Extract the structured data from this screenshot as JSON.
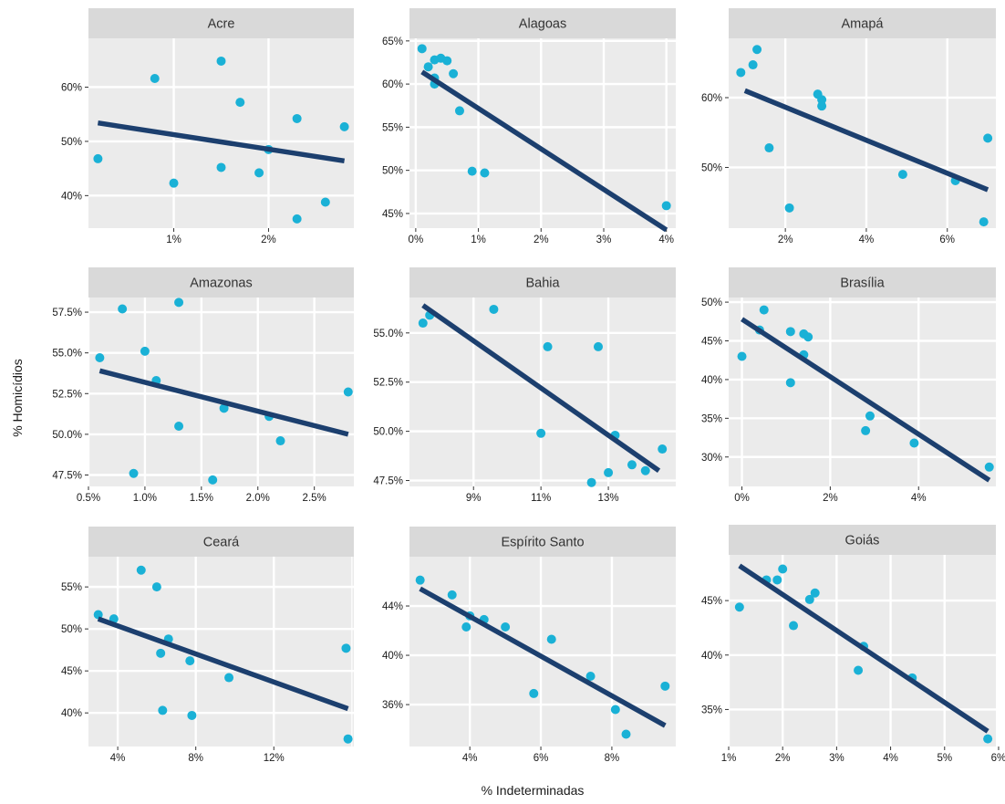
{
  "figure": {
    "xlabel": "% Indeterminadas",
    "ylabel": "% Homicídios"
  },
  "colors": {
    "panel_bg": "#EBEBEB",
    "strip_bg": "#D9D9D9",
    "grid": "#FFFFFF",
    "point": "#1AB1D6",
    "line": "#1C3F6E",
    "text": "#333333",
    "tick_text": "#1A1A1A"
  },
  "chart_data": [
    {
      "type": "scatter",
      "title": "Acre",
      "xlim": [
        0.1,
        2.9
      ],
      "ylim": [
        34,
        69
      ],
      "xticks": [
        1,
        2
      ],
      "xtick_labels": [
        "1%",
        "2%"
      ],
      "yticks": [
        40,
        50,
        60
      ],
      "ytick_labels": [
        "40%",
        "50%",
        "60%"
      ],
      "points": [
        [
          0.2,
          46.8
        ],
        [
          0.8,
          61.6
        ],
        [
          1.0,
          42.3
        ],
        [
          1.5,
          64.8
        ],
        [
          1.5,
          45.2
        ],
        [
          1.7,
          57.2
        ],
        [
          1.9,
          44.2
        ],
        [
          2.0,
          48.5
        ],
        [
          2.3,
          54.2
        ],
        [
          2.3,
          35.7
        ],
        [
          2.6,
          38.8
        ],
        [
          2.8,
          52.7
        ]
      ],
      "fit": [
        [
          0.2,
          53.4
        ],
        [
          2.8,
          46.4
        ]
      ]
    },
    {
      "type": "scatter",
      "title": "Alagoas",
      "xlim": [
        -0.1,
        4.15
      ],
      "ylim": [
        43.3,
        65.3
      ],
      "xticks": [
        0,
        1,
        2,
        3,
        4
      ],
      "xtick_labels": [
        "0%",
        "1%",
        "2%",
        "3%",
        "4%"
      ],
      "yticks": [
        45,
        50,
        55,
        60,
        65
      ],
      "ytick_labels": [
        "45%",
        "50%",
        "55%",
        "60%",
        "65%"
      ],
      "points": [
        [
          0.1,
          64.1
        ],
        [
          0.2,
          62.0
        ],
        [
          0.3,
          62.8
        ],
        [
          0.4,
          63.0
        ],
        [
          0.5,
          62.7
        ],
        [
          0.3,
          60.7
        ],
        [
          0.3,
          60.0
        ],
        [
          0.6,
          61.2
        ],
        [
          0.7,
          56.9
        ],
        [
          0.9,
          49.9
        ],
        [
          1.1,
          49.7
        ],
        [
          4.0,
          45.9
        ]
      ],
      "fit": [
        [
          0.1,
          61.4
        ],
        [
          4.0,
          43.1
        ]
      ]
    },
    {
      "type": "scatter",
      "title": "Amapá",
      "xlim": [
        0.6,
        7.2
      ],
      "ylim": [
        41.3,
        68.5
      ],
      "xticks": [
        2,
        4,
        6
      ],
      "xtick_labels": [
        "2%",
        "4%",
        "6%"
      ],
      "yticks": [
        50,
        60
      ],
      "ytick_labels": [
        "50%",
        "60%"
      ],
      "points": [
        [
          0.9,
          63.6
        ],
        [
          1.2,
          64.7
        ],
        [
          1.3,
          66.9
        ],
        [
          1.6,
          52.8
        ],
        [
          2.1,
          44.2
        ],
        [
          2.8,
          60.5
        ],
        [
          2.9,
          59.7
        ],
        [
          2.9,
          58.8
        ],
        [
          4.9,
          49.0
        ],
        [
          6.2,
          48.1
        ],
        [
          6.9,
          42.2
        ],
        [
          7.0,
          54.2
        ]
      ],
      "fit": [
        [
          1.0,
          61.0
        ],
        [
          7.0,
          46.8
        ]
      ]
    },
    {
      "type": "scatter",
      "title": "Amazonas",
      "xlim": [
        0.5,
        2.85
      ],
      "ylim": [
        46.8,
        58.4
      ],
      "xticks": [
        0.5,
        1.0,
        1.5,
        2.0,
        2.5
      ],
      "xtick_labels": [
        "0.5%",
        "1.0%",
        "1.5%",
        "2.0%",
        "2.5%"
      ],
      "yticks": [
        47.5,
        50.0,
        52.5,
        55.0,
        57.5
      ],
      "ytick_labels": [
        "47.5%",
        "50.0%",
        "52.5%",
        "55.0%",
        "57.5%"
      ],
      "points": [
        [
          0.6,
          54.7
        ],
        [
          0.8,
          57.7
        ],
        [
          0.9,
          47.6
        ],
        [
          1.0,
          55.1
        ],
        [
          1.1,
          53.3
        ],
        [
          1.3,
          58.1
        ],
        [
          1.3,
          50.5
        ],
        [
          1.6,
          47.2
        ],
        [
          1.7,
          51.6
        ],
        [
          2.1,
          51.1
        ],
        [
          2.2,
          49.6
        ],
        [
          2.8,
          52.6
        ]
      ],
      "fit": [
        [
          0.6,
          53.9
        ],
        [
          2.8,
          50.0
        ]
      ]
    },
    {
      "type": "scatter",
      "title": "Bahia",
      "xlim": [
        7.1,
        15.0
      ],
      "ylim": [
        47.2,
        56.8
      ],
      "xticks": [
        9,
        11,
        13
      ],
      "xtick_labels": [
        "9%",
        "11%",
        "13%"
      ],
      "yticks": [
        47.5,
        50.0,
        52.5,
        55.0
      ],
      "ytick_labels": [
        "47.5%",
        "50.0%",
        "52.5%",
        "55.0%"
      ],
      "points": [
        [
          7.5,
          55.5
        ],
        [
          7.7,
          55.9
        ],
        [
          9.6,
          56.2
        ],
        [
          11.0,
          49.9
        ],
        [
          11.2,
          54.3
        ],
        [
          12.5,
          47.4
        ],
        [
          12.7,
          54.3
        ],
        [
          13.0,
          47.9
        ],
        [
          13.2,
          49.8
        ],
        [
          13.7,
          48.3
        ],
        [
          14.1,
          48.0
        ],
        [
          14.6,
          49.1
        ]
      ],
      "fit": [
        [
          7.5,
          56.4
        ],
        [
          14.5,
          48.0
        ]
      ]
    },
    {
      "type": "scatter",
      "title": "Brasília",
      "xlim": [
        -0.3,
        5.75
      ],
      "ylim": [
        26.2,
        50.6
      ],
      "xticks": [
        0,
        2,
        4
      ],
      "xtick_labels": [
        "0%",
        "2%",
        "4%"
      ],
      "yticks": [
        30,
        35,
        40,
        45,
        50
      ],
      "ytick_labels": [
        "30%",
        "35%",
        "40%",
        "45%",
        "50%"
      ],
      "points": [
        [
          0.0,
          43.0
        ],
        [
          0.4,
          46.4
        ],
        [
          0.5,
          49.0
        ],
        [
          1.1,
          46.2
        ],
        [
          1.4,
          45.9
        ],
        [
          1.5,
          45.5
        ],
        [
          1.4,
          43.2
        ],
        [
          1.1,
          39.6
        ],
        [
          2.9,
          35.3
        ],
        [
          2.8,
          33.4
        ],
        [
          3.9,
          31.8
        ],
        [
          5.6,
          28.7
        ]
      ],
      "fit": [
        [
          0.0,
          47.8
        ],
        [
          5.6,
          27.0
        ]
      ]
    },
    {
      "type": "scatter",
      "title": "Ceará",
      "xlim": [
        2.5,
        16.1
      ],
      "ylim": [
        36.0,
        58.6
      ],
      "xticks": [
        4,
        8,
        12
      ],
      "xtick_labels": [
        "4%",
        "8%",
        "12%"
      ],
      "yticks": [
        40,
        45,
        50,
        55
      ],
      "ytick_labels": [
        "40%",
        "45%",
        "50%",
        "55%"
      ],
      "points": [
        [
          3.0,
          51.7
        ],
        [
          3.8,
          51.2
        ],
        [
          5.2,
          57.0
        ],
        [
          6.0,
          55.0
        ],
        [
          6.2,
          47.1
        ],
        [
          6.6,
          48.8
        ],
        [
          7.7,
          46.2
        ],
        [
          6.3,
          40.3
        ],
        [
          7.8,
          39.7
        ],
        [
          9.7,
          44.2
        ],
        [
          15.7,
          47.7
        ],
        [
          15.8,
          36.9
        ]
      ],
      "fit": [
        [
          3.0,
          51.2
        ],
        [
          15.8,
          40.5
        ]
      ]
    },
    {
      "type": "scatter",
      "title": "Espírito Santo",
      "xlim": [
        2.3,
        9.8
      ],
      "ylim": [
        32.6,
        48.0
      ],
      "xticks": [
        4,
        6,
        8
      ],
      "xtick_labels": [
        "4%",
        "6%",
        "8%"
      ],
      "yticks": [
        36,
        40,
        44
      ],
      "ytick_labels": [
        "36%",
        "40%",
        "44%"
      ],
      "points": [
        [
          2.6,
          46.1
        ],
        [
          3.5,
          44.9
        ],
        [
          4.0,
          43.2
        ],
        [
          3.9,
          42.3
        ],
        [
          4.4,
          42.9
        ],
        [
          5.0,
          42.3
        ],
        [
          5.8,
          36.9
        ],
        [
          6.3,
          41.3
        ],
        [
          7.4,
          38.3
        ],
        [
          8.1,
          35.6
        ],
        [
          8.4,
          33.6
        ],
        [
          9.5,
          37.5
        ]
      ],
      "fit": [
        [
          2.6,
          45.4
        ],
        [
          9.5,
          34.3
        ]
      ]
    },
    {
      "type": "scatter",
      "title": "Goiás",
      "xlim": [
        1.0,
        5.95
      ],
      "ylim": [
        31.6,
        49.2
      ],
      "xticks": [
        1,
        2,
        3,
        4,
        5,
        6
      ],
      "xtick_labels": [
        "1%",
        "2%",
        "3%",
        "4%",
        "5%",
        "6%"
      ],
      "yticks": [
        35,
        40,
        45
      ],
      "ytick_labels": [
        "35%",
        "40%",
        "45%"
      ],
      "points": [
        [
          1.2,
          44.4
        ],
        [
          1.7,
          46.9
        ],
        [
          1.9,
          46.9
        ],
        [
          2.0,
          47.9
        ],
        [
          2.2,
          42.7
        ],
        [
          2.5,
          45.1
        ],
        [
          2.6,
          45.7
        ],
        [
          3.4,
          38.6
        ],
        [
          3.5,
          40.8
        ],
        [
          4.4,
          37.9
        ],
        [
          5.8,
          32.3
        ]
      ],
      "fit": [
        [
          1.2,
          48.2
        ],
        [
          5.8,
          33.0
        ]
      ]
    }
  ]
}
